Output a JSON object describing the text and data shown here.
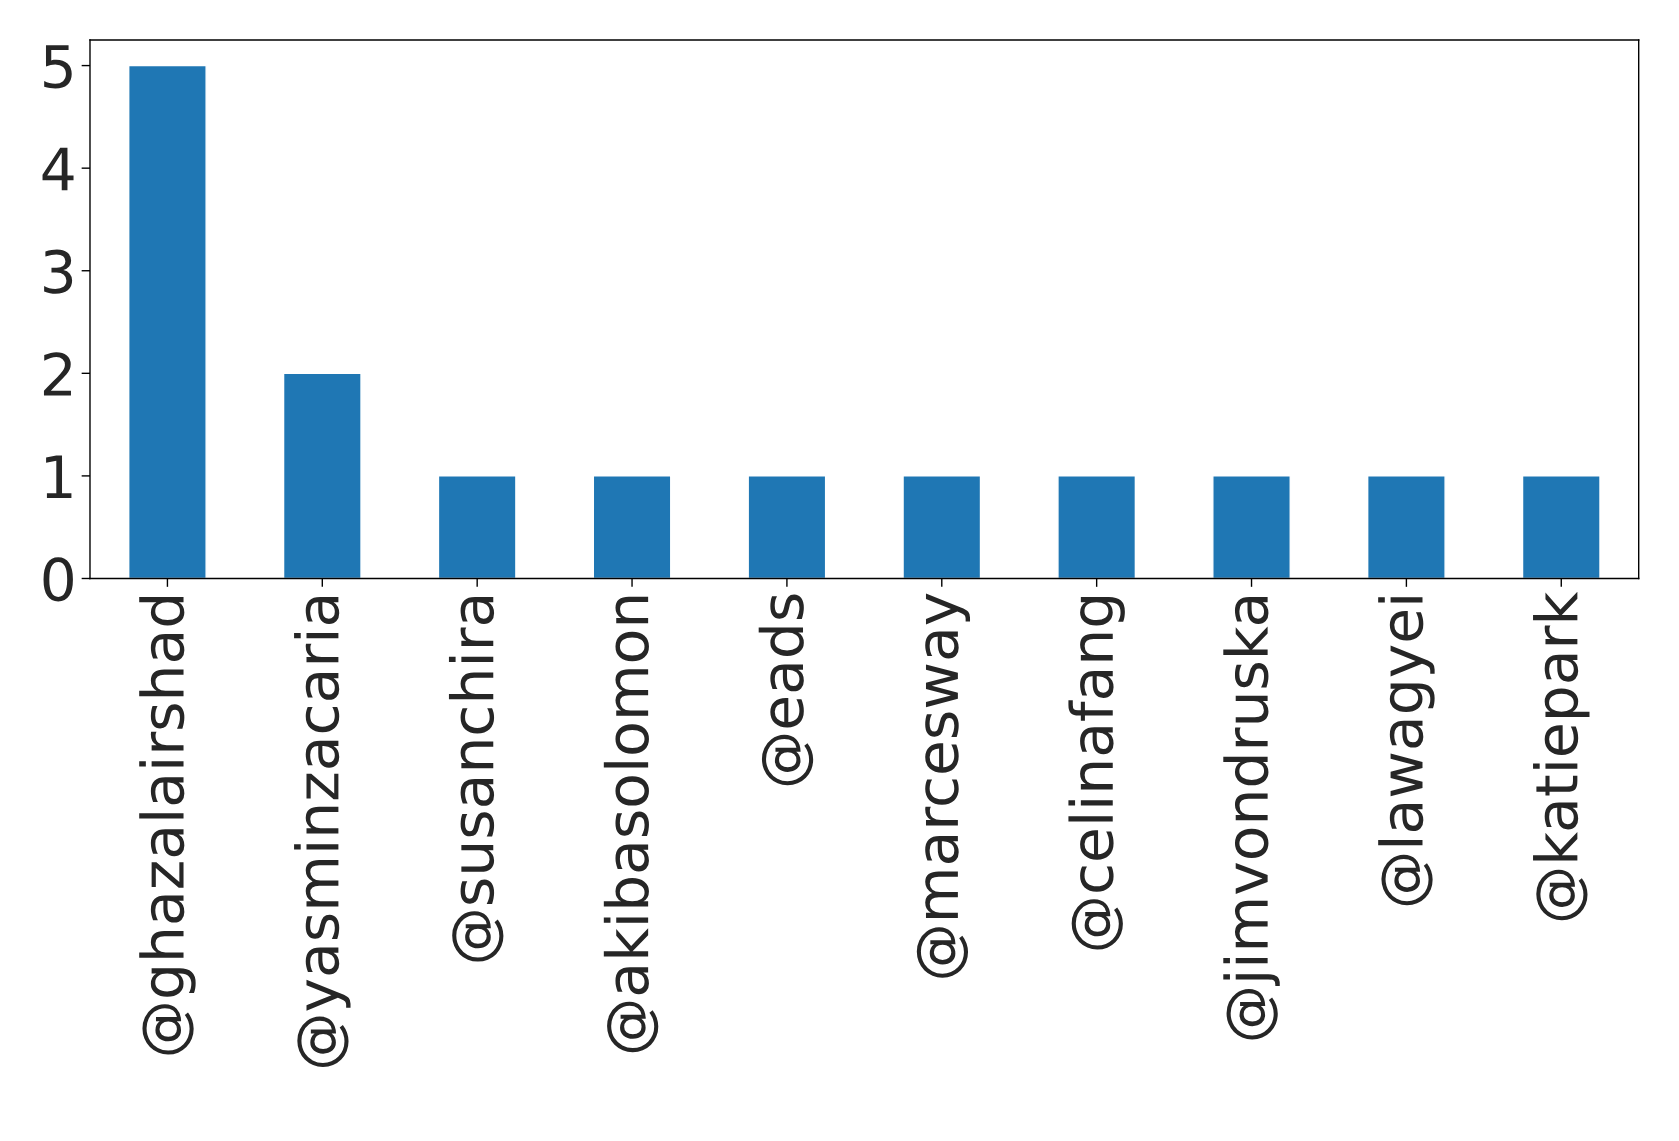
{
  "chart_data": {
    "type": "bar",
    "categories": [
      "@ghazalairshad",
      "@yasminzacaria",
      "@susanchira",
      "@akibasolomon",
      "@eads",
      "@marcesway",
      "@celinafang",
      "@jimvondruska",
      "@lawagyei",
      "@katiepark"
    ],
    "values": [
      5,
      2,
      1,
      1,
      1,
      1,
      1,
      1,
      1,
      1
    ],
    "color": "#1f77b4",
    "ylim": [
      0,
      5.25
    ],
    "yticks": [
      0,
      1,
      2,
      3,
      4,
      5
    ],
    "grid": false,
    "legend": false
  }
}
